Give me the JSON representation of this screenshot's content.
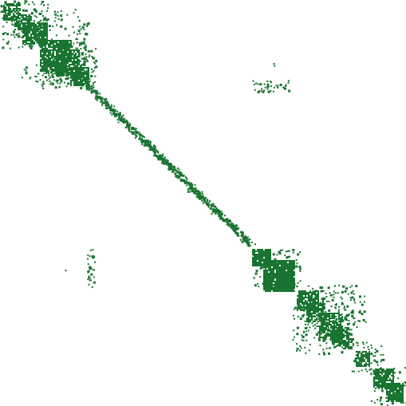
{
  "matrix": {
    "marker_color": "#1a7431",
    "background_color": "#ffffff",
    "pattern": "sparse-banded-block-diagonal"
  }
}
